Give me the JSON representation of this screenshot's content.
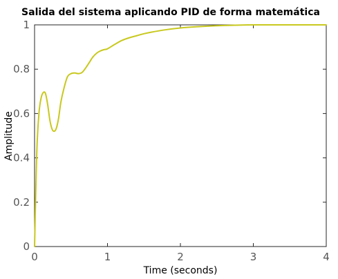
{
  "chart_data": {
    "type": "line",
    "title": "Salida del sistema aplicando PID de forma matemática",
    "xlabel": "Time (seconds)",
    "ylabel": "Amplitude",
    "xlim": [
      0,
      4
    ],
    "ylim": [
      0,
      1
    ],
    "xticks": [
      0,
      1,
      2,
      3,
      4
    ],
    "yticks": [
      0,
      0.2,
      0.4,
      0.6,
      0.8,
      1
    ],
    "xtick_labels": [
      "0",
      "1",
      "2",
      "3",
      "4"
    ],
    "ytick_labels": [
      "0",
      "0.2",
      "0.4",
      "0.6",
      "0.8",
      "1"
    ],
    "grid": false,
    "series": [
      {
        "color": "#c8c81e",
        "x": [
          0,
          0.03,
          0.06,
          0.09,
          0.12,
          0.15,
          0.18,
          0.21,
          0.24,
          0.27,
          0.3,
          0.33,
          0.36,
          0.4,
          0.45,
          0.5,
          0.55,
          0.6,
          0.65,
          0.7,
          0.75,
          0.8,
          0.85,
          0.9,
          0.95,
          1.0,
          1.1,
          1.2,
          1.3,
          1.4,
          1.5,
          1.6,
          1.8,
          2.0,
          2.2,
          2.5,
          2.8,
          3.0,
          3.2,
          3.5,
          4.0
        ],
        "y": [
          0,
          0.42,
          0.6,
          0.67,
          0.695,
          0.69,
          0.64,
          0.57,
          0.53,
          0.52,
          0.535,
          0.58,
          0.65,
          0.71,
          0.765,
          0.78,
          0.783,
          0.78,
          0.785,
          0.805,
          0.83,
          0.855,
          0.872,
          0.882,
          0.888,
          0.892,
          0.912,
          0.93,
          0.942,
          0.951,
          0.96,
          0.967,
          0.978,
          0.986,
          0.991,
          0.996,
          0.999,
          1.0,
          1.0,
          1.0,
          1.0
        ]
      }
    ]
  }
}
